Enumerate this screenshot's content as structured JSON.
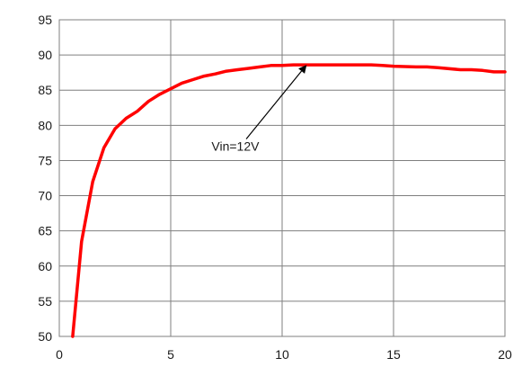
{
  "chart_data": {
    "type": "line",
    "title": "",
    "xlabel": "",
    "ylabel": "",
    "xlim": [
      0,
      20
    ],
    "ylim": [
      50,
      95
    ],
    "x_ticks": [
      0,
      5,
      10,
      15,
      20
    ],
    "y_ticks": [
      50,
      55,
      60,
      65,
      70,
      75,
      80,
      85,
      90,
      95
    ],
    "grid": true,
    "legend": "none",
    "series": [
      {
        "color": "#ff0000",
        "x": [
          0.6,
          1.0,
          1.5,
          2.0,
          2.5,
          3.0,
          3.5,
          4.0,
          4.5,
          5.0,
          5.5,
          6.0,
          6.5,
          7.0,
          7.5,
          8.0,
          8.5,
          9.0,
          9.5,
          10.0,
          10.5,
          11.0,
          12.0,
          13.0,
          14.0,
          14.5,
          15.0,
          16.0,
          16.5,
          17.0,
          18.0,
          18.5,
          19.0,
          19.5,
          20.0
        ],
        "y": [
          50,
          63.5,
          72,
          76.8,
          79.5,
          81,
          82,
          83.4,
          84.4,
          85.2,
          86,
          86.5,
          87,
          87.3,
          87.7,
          87.9,
          88.1,
          88.3,
          88.5,
          88.5,
          88.6,
          88.6,
          88.6,
          88.6,
          88.6,
          88.5,
          88.4,
          88.3,
          88.3,
          88.2,
          87.9,
          87.9,
          87.8,
          87.6,
          87.6
        ]
      }
    ],
    "annotations": [
      {
        "text": "Vin=12V",
        "x": 7.9,
        "y": 76.4,
        "arrow_to": [
          11.1,
          88.6
        ]
      }
    ]
  }
}
